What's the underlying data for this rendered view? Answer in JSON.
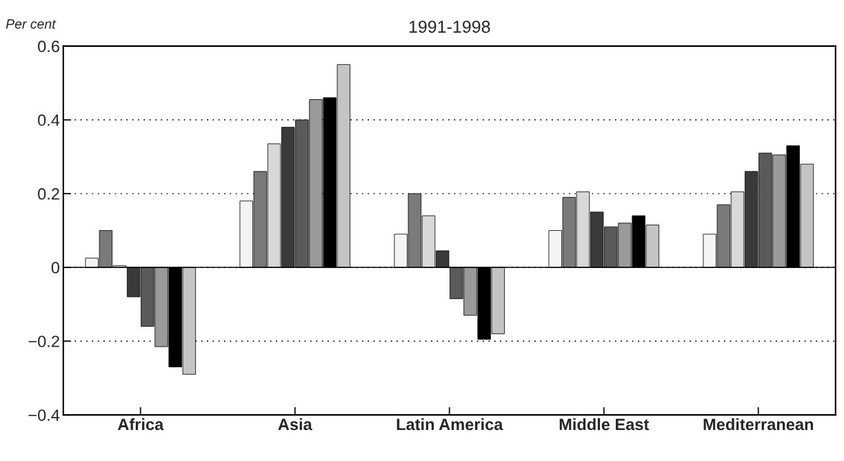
{
  "chart_data": {
    "type": "bar",
    "title": "1991-1998",
    "ylabel": "Per cent",
    "categories": [
      "Africa",
      "Asia",
      "Latin America",
      "Middle East",
      "Mediterranean"
    ],
    "series": [
      {
        "color": "#f4f4f4",
        "values": [
          0.025,
          0.18,
          0.09,
          0.1,
          0.09
        ]
      },
      {
        "color": "#7a7a7a",
        "values": [
          0.1,
          0.26,
          0.2,
          0.19,
          0.17
        ]
      },
      {
        "color": "#d8d8d8",
        "values": [
          0.005,
          0.335,
          0.14,
          0.205,
          0.205
        ]
      },
      {
        "color": "#3a3a3a",
        "values": [
          -0.08,
          0.38,
          0.045,
          0.15,
          0.26
        ]
      },
      {
        "color": "#5a5a5a",
        "values": [
          -0.16,
          0.4,
          -0.085,
          0.11,
          0.31
        ]
      },
      {
        "color": "#9a9a9a",
        "values": [
          -0.215,
          0.455,
          -0.13,
          0.12,
          0.305
        ]
      },
      {
        "color": "#000000",
        "values": [
          -0.27,
          0.46,
          -0.195,
          0.14,
          0.33
        ]
      },
      {
        "color": "#c4c4c4",
        "values": [
          -0.29,
          0.55,
          -0.18,
          0.115,
          0.28
        ]
      }
    ],
    "ylim": [
      -0.4,
      0.6
    ],
    "yticks": [
      {
        "value": -0.4,
        "label": "−0.4"
      },
      {
        "value": -0.2,
        "label": "−0.2"
      },
      0,
      0.2,
      0.4,
      0.6
    ],
    "grid": "y"
  }
}
